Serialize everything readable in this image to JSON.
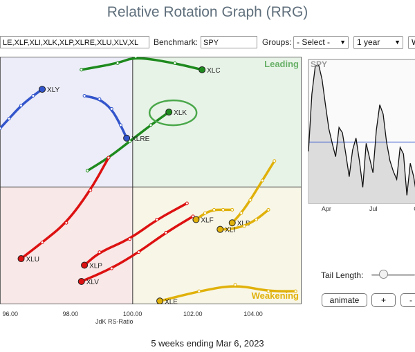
{
  "app": {
    "title": "Relative Rotation Graph (RRG)",
    "footer": "5 weeks ending Mar 6, 2023"
  },
  "controls": {
    "symbols_value": "LE,XLF,XLI,XLK,XLP,XLRE,XLU,XLV,XL",
    "benchmark_label": "Benchmark:",
    "benchmark_value": "SPY",
    "groups_label": "Groups:",
    "groups_value": "- Select -",
    "period_value": "1 year",
    "extra_value": "W",
    "tail_length_label": "Tail Length:",
    "tail_length": 0.22,
    "animate_label": "animate",
    "plus_label": "+",
    "minus_label": "-"
  },
  "chart_data": [
    {
      "type": "scatter",
      "xlabel": "JdK RS-Ratio",
      "xlim": [
        95.6,
        105.6
      ],
      "ylim": [
        96.4,
        104.0
      ],
      "x_ticks": [
        "96.00",
        "98.00",
        "100.00",
        "102.00",
        "104.00"
      ],
      "center": [
        100,
        100
      ],
      "quadrants": {
        "leading": {
          "label": "Leading",
          "color": "#3e9a3e",
          "bg": "#e8f3e8"
        },
        "weakening": {
          "label": "Weakening",
          "color": "#e0b10a",
          "bg": "#f8f6e6"
        },
        "lagging": {
          "color": "#d33a3a",
          "bg": "#f8e8e8"
        },
        "improving": {
          "color": "#4050c0",
          "bg": "#ecedf8"
        }
      },
      "highlighted": "XLK",
      "series": [
        {
          "name": "XLC",
          "color": "#1e8a1e",
          "points": [
            [
              98.3,
              103.6
            ],
            [
              99.5,
              103.8
            ],
            [
              100.1,
              104.0
            ],
            [
              101.4,
              103.8
            ],
            [
              102.3,
              103.6
            ]
          ]
        },
        {
          "name": "XLY",
          "color": "#3355cc",
          "points": [
            [
              95.6,
              101.8
            ],
            [
              95.9,
              102.1
            ],
            [
              96.3,
              102.5
            ],
            [
              96.7,
              102.8
            ],
            [
              97.0,
              103.0
            ]
          ]
        },
        {
          "name": "XLK",
          "color": "#1e8a1e",
          "points": [
            [
              98.5,
              100.5
            ],
            [
              99.2,
              100.9
            ],
            [
              99.9,
              101.4
            ],
            [
              100.6,
              101.9
            ],
            [
              101.2,
              102.3
            ]
          ]
        },
        {
          "name": "XLRE",
          "color": "#3355cc",
          "points": [
            [
              98.4,
              102.8
            ],
            [
              98.9,
              102.7
            ],
            [
              99.3,
              102.4
            ],
            [
              99.6,
              101.9
            ],
            [
              99.8,
              101.5
            ]
          ]
        },
        {
          "name": "XLU",
          "color": "#dd1111",
          "points": [
            [
              99.2,
              100.9
            ],
            [
              98.6,
              99.9
            ],
            [
              97.8,
              98.9
            ],
            [
              97.0,
              98.3
            ],
            [
              96.3,
              97.8
            ]
          ]
        },
        {
          "name": "XLP",
          "color": "#dd1111",
          "points": [
            [
              101.8,
              99.5
            ],
            [
              100.8,
              99.0
            ],
            [
              99.9,
              98.4
            ],
            [
              98.9,
              98.0
            ],
            [
              98.4,
              97.6
            ]
          ]
        },
        {
          "name": "XLV",
          "color": "#dd1111",
          "points": [
            [
              102.0,
              99.1
            ],
            [
              101.1,
              98.6
            ],
            [
              100.2,
              98.0
            ],
            [
              99.3,
              97.5
            ],
            [
              98.3,
              97.1
            ]
          ]
        },
        {
          "name": "XLF",
          "color": "#e0b10a",
          "points": [
            [
              103.3,
              99.3
            ],
            [
              103.0,
              99.3
            ],
            [
              102.7,
              99.3
            ],
            [
              102.4,
              99.2
            ],
            [
              102.1,
              99.0
            ]
          ]
        },
        {
          "name": "XLB",
          "color": "#e0b10a",
          "points": [
            [
              104.7,
              100.8
            ],
            [
              104.3,
              100.2
            ],
            [
              103.9,
              99.6
            ],
            [
              103.6,
              99.2
            ],
            [
              103.3,
              98.9
            ]
          ]
        },
        {
          "name": "XLI",
          "color": "#e0b10a",
          "points": [
            [
              104.5,
              99.3
            ],
            [
              104.1,
              99.0
            ],
            [
              103.7,
              98.8
            ],
            [
              103.2,
              98.7
            ],
            [
              102.9,
              98.7
            ]
          ]
        },
        {
          "name": "XLE",
          "color": "#e0b10a",
          "points": [
            [
              105.4,
              96.8
            ],
            [
              104.5,
              96.8
            ],
            [
              103.4,
              97.0
            ],
            [
              102.2,
              96.8
            ],
            [
              100.9,
              96.5
            ]
          ]
        }
      ]
    },
    {
      "type": "area",
      "title": "SPY",
      "x_ticks": [
        "Apr",
        "Jul",
        "Oc"
      ],
      "values": [
        3950,
        4380,
        4590,
        4600,
        4490,
        4300,
        4120,
        4010,
        3910,
        4130,
        4090,
        3930,
        3760,
        3960,
        4050,
        3880,
        3680,
        4010,
        3900,
        3790,
        4110,
        4300,
        4230,
        4020,
        3880,
        3800,
        3740,
        3980,
        3930,
        3620,
        3860,
        3760,
        3600
      ],
      "ylim": [
        3560,
        4640
      ],
      "reference": 4020,
      "line_color": "#111111",
      "fill_color": "#dcdcdc",
      "reference_color": "#3355cc"
    }
  ]
}
